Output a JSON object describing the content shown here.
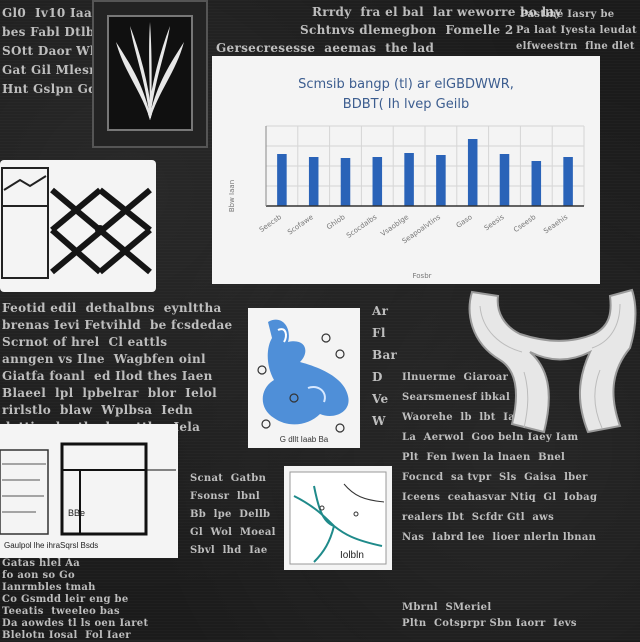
{
  "texts": {
    "top_center": "Rrrdy  fra el bal  lar weworre bo lay",
    "top_center2": "Schtnvs dlemegbon  Fomelle 2",
    "top_center3": "Gersecresesse  aeemas  the lad",
    "top_right1": "Pastlhe Iasry be",
    "top_right2": "Pa laat Iyesta leudat",
    "top_right3": "elfweestrn  flne dlet",
    "left_col1": "Gl0  Iv10 Iaa\nbes Fabl Dtlb\nSOtt Daor Wha\nGat Gil Mlesn\nHnt Gslpn Gd",
    "mid_paragraph": "Feotid edil  dethalbns  eynlttha\nbrenas Ievi Fetvihld  be fcsdedae\nScrnot of hrel  Cl eattls\nanngen vs Ilne  Wagbfen oinl\nGiatfa foanl  ed Ilod thes Iaen\nBlaeel  lpl  lpbelrar  blor  Ielol\nrirlstlo  blaw  Wplbsa  Iedn\ndettins lo  tlpol mottbe  Iela",
    "bottom_left": "Gatas hlel Aa\nfo aon so Go\nIanrmbles tmah\nCo Gsmdd leir eng be\nTeeatis  tweeleo bas\nDa aowdes tl ls oen Iaret\nBlelotn Iosal  Fol Iaer",
    "right_mid": "Ar\nFl\nBar\nD\nVe\nW",
    "right_paragraph": "Ilnuerme  Giaroar\nSearsmenesf ibkal  ba\nWaorehe  lb  lbt  Iaeo\nLa  Aerwol  Goo beln Iaey Iam\nPlt  Fen Iwen la lnaen  Bnel\nFocncd  sa tvpr  Sls  Gaisa  lber\nIceens  ceahasvar Ntiq  Gl  Iobag\nrealers Ibt  Scfdr Gtl  aws\nNas  Iabrd lee  lioer nlerln lbnan",
    "bottom_center": "Scnat  Gatbn\nFsonsr  lbnl\nBb  lpe  Dellb\nGl  Wol  Moeal\nSbvl  lhd  Iae",
    "bottom_far": "Mbrnl  SMeriel\nPltn  Cotsprpr Sbn Iaorr  Ievs"
  },
  "chart": {
    "title_line1": "Scmsib bangp (tl)  ar elGBDWWR,",
    "title_line2": "BDBT(  Ih lvep Geilb",
    "y_label": "Bbw Iaan",
    "x_label": "Fosbr",
    "color": "#2a63b8"
  },
  "chart_data": {
    "type": "bar",
    "title": "Scmsib bangp (tl)  ar elGBDWWR, BDBT(  Ih lvep Geilb",
    "categories": [
      "Seecsb",
      "Scofawe",
      "Ghlob",
      "Scocdalbs",
      "Vsaoblge",
      "Seapoalvtins",
      "Gaso",
      "Seesis",
      "Cseesb",
      "Seaehis"
    ],
    "values": [
      5.2,
      4.9,
      4.8,
      4.9,
      5.3,
      5.1,
      6.7,
      5.2,
      4.5,
      4.9
    ],
    "ylim": [
      0,
      8
    ],
    "xlabel": "Fosbr",
    "ylabel": "Bbw Iaan",
    "grid": true
  },
  "diagram_left_label": "Gaulpol  lhe ihraSqrsl Bsds",
  "diagram_left_small": "BBe",
  "diagram_right_label": "Iolbln",
  "molecule_label": "G  dllt Iaab Ba"
}
